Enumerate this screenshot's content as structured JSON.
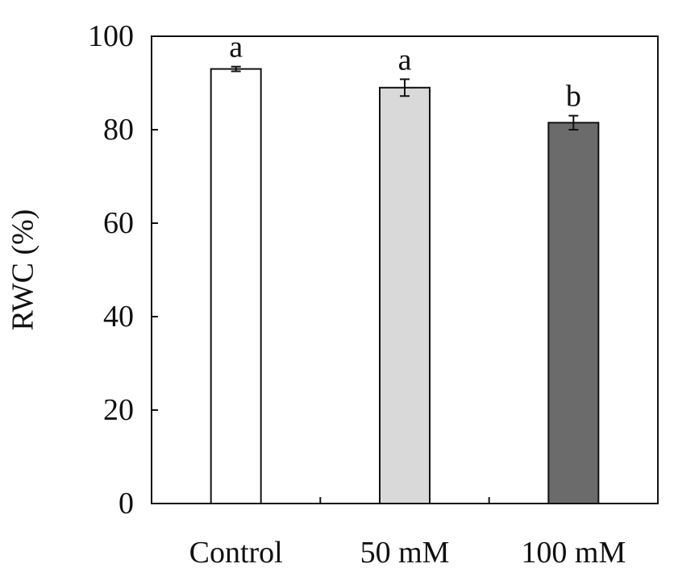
{
  "chart_data": {
    "type": "bar",
    "categories": [
      "Control",
      "50 mM",
      "100 mM"
    ],
    "values": [
      93,
      89,
      81.5
    ],
    "errors": [
      0.5,
      1.8,
      1.5
    ],
    "significance_letters": [
      "a",
      "a",
      "b"
    ],
    "bar_colors": [
      "#ffffff",
      "#d9d9d9",
      "#6b6b6b"
    ],
    "title": "",
    "xlabel": "",
    "ylabel": "RWC (%)",
    "ylim": [
      0,
      100
    ],
    "yticks": [
      0,
      20,
      40,
      60,
      80,
      100
    ],
    "grid": false,
    "legend": "none"
  }
}
